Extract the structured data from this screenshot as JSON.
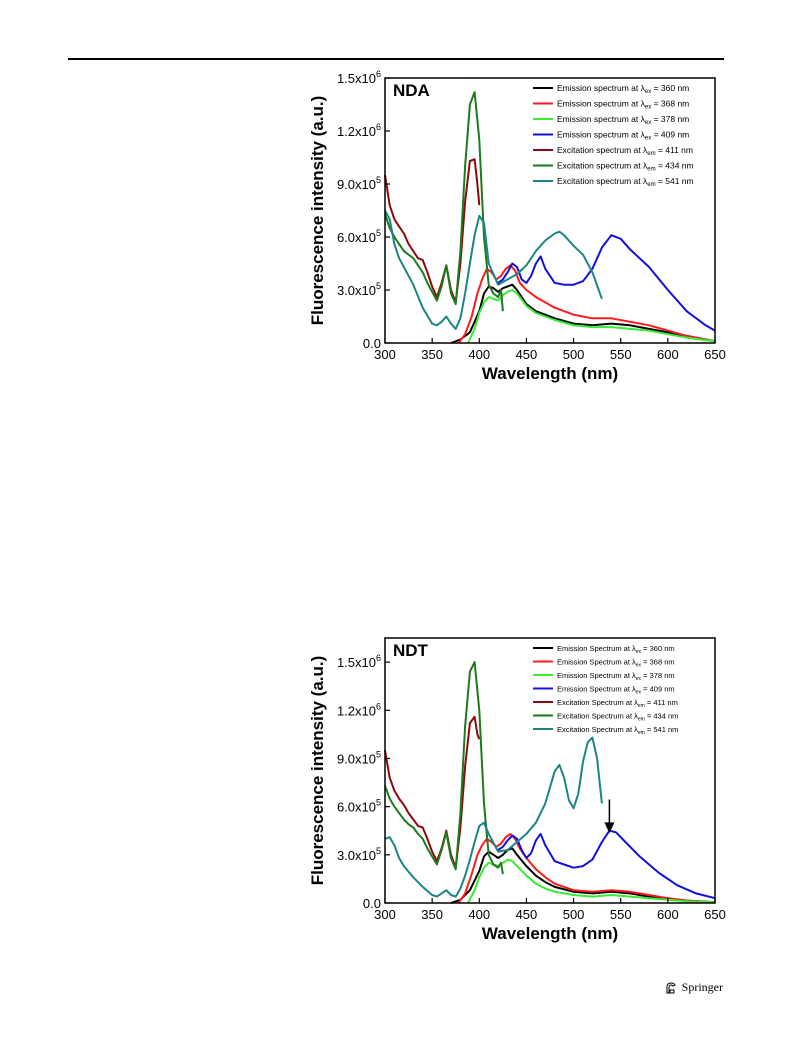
{
  "footer": {
    "publisher": "Springer",
    "icon": "springer-horse-icon"
  },
  "chart_data": [
    {
      "type": "line",
      "panel_label": "NDA",
      "xlabel": "Wavelength (nm)",
      "ylabel": "Fluorescence intensity (a.u.)",
      "xlim": [
        300,
        650
      ],
      "ylim": [
        0,
        1500000
      ],
      "xticks": [
        300,
        350,
        400,
        450,
        500,
        550,
        600,
        650
      ],
      "yticks": [
        0,
        300000,
        600000,
        900000,
        1200000,
        1500000
      ],
      "ytick_labels": [
        "0.0",
        "3.0x10^5",
        "6.0x10^5",
        "9.0x10^5",
        "1.2x10^6",
        "1.5x10^6"
      ],
      "legend_position": "top-right",
      "series": [
        {
          "name": "Emission spectrum at λex = 360 nm",
          "prefix": "Emission spectrum at λ",
          "sub": "ex",
          "suffix": " = 360 nm",
          "color": "#000000",
          "x": [
            370,
            380,
            390,
            400,
            405,
            410,
            415,
            420,
            425,
            430,
            435,
            440,
            450,
            460,
            470,
            480,
            500,
            520,
            540,
            560,
            580,
            600,
            620,
            650
          ],
          "y": [
            0,
            20000,
            60000,
            180000,
            280000,
            320000,
            310000,
            290000,
            310000,
            320000,
            330000,
            300000,
            220000,
            180000,
            160000,
            140000,
            110000,
            100000,
            110000,
            100000,
            80000,
            60000,
            40000,
            10000
          ]
        },
        {
          "name": "Emission spectrum at λex = 368 nm",
          "prefix": "Emission spectrum at λ",
          "sub": "ex",
          "suffix": " = 368 nm",
          "color": "#ff1a1a",
          "x": [
            378,
            385,
            392,
            398,
            403,
            408,
            413,
            418,
            423,
            428,
            433,
            438,
            443,
            450,
            460,
            470,
            480,
            500,
            520,
            540,
            560,
            580,
            600,
            620,
            650
          ],
          "y": [
            0,
            50000,
            150000,
            280000,
            360000,
            420000,
            400000,
            360000,
            380000,
            420000,
            440000,
            410000,
            340000,
            300000,
            260000,
            230000,
            200000,
            160000,
            140000,
            140000,
            120000,
            100000,
            70000,
            40000,
            10000
          ]
        },
        {
          "name": "Emission spectrum at λex = 378 nm",
          "prefix": "Emission spectrum at λ",
          "sub": "ex",
          "suffix": " = 378 nm",
          "color": "#33ee33",
          "x": [
            388,
            395,
            400,
            405,
            410,
            415,
            420,
            425,
            430,
            435,
            440,
            450,
            460,
            470,
            480,
            500,
            520,
            540,
            560,
            580,
            600,
            620,
            650
          ],
          "y": [
            0,
            80000,
            170000,
            230000,
            260000,
            250000,
            240000,
            270000,
            290000,
            300000,
            280000,
            210000,
            170000,
            150000,
            130000,
            100000,
            90000,
            90000,
            80000,
            70000,
            50000,
            30000,
            10000
          ]
        },
        {
          "name": "Emission spectrum at λex = 409 nm",
          "prefix": "Emission spectrum at λ",
          "sub": "ex",
          "suffix": " = 409 nm",
          "color": "#1010dd",
          "x": [
            420,
            425,
            430,
            435,
            440,
            445,
            450,
            455,
            460,
            465,
            470,
            480,
            490,
            500,
            510,
            520,
            530,
            540,
            550,
            560,
            580,
            600,
            620,
            640,
            650
          ],
          "y": [
            340000,
            360000,
            400000,
            450000,
            430000,
            360000,
            340000,
            380000,
            450000,
            490000,
            420000,
            340000,
            330000,
            330000,
            350000,
            420000,
            540000,
            610000,
            590000,
            530000,
            430000,
            300000,
            180000,
            100000,
            70000
          ]
        },
        {
          "name": "Excitation spectrum at λem = 411 nm",
          "prefix": "Excitation spectrum at λ",
          "sub": "em",
          "suffix": " = 411 nm",
          "color": "#8b0a0a",
          "x": [
            300,
            305,
            310,
            315,
            320,
            325,
            330,
            335,
            340,
            345,
            350,
            355,
            360,
            365,
            370,
            375,
            380,
            385,
            390,
            395,
            398,
            400
          ],
          "y": [
            950000,
            780000,
            700000,
            660000,
            620000,
            560000,
            520000,
            480000,
            470000,
            400000,
            320000,
            260000,
            340000,
            440000,
            300000,
            230000,
            450000,
            800000,
            1030000,
            1040000,
            900000,
            780000
          ]
        },
        {
          "name": "Excitation spectrum at λem = 434 nm",
          "prefix": "Excitation spectrum at λ",
          "sub": "em",
          "suffix": " = 434 nm",
          "color": "#1e7a1e",
          "x": [
            300,
            305,
            310,
            315,
            320,
            325,
            330,
            335,
            340,
            345,
            350,
            355,
            360,
            365,
            370,
            375,
            380,
            385,
            390,
            395,
            400,
            405,
            410,
            415,
            420,
            423,
            425
          ],
          "y": [
            730000,
            650000,
            600000,
            560000,
            520000,
            500000,
            480000,
            440000,
            400000,
            340000,
            290000,
            240000,
            320000,
            440000,
            280000,
            220000,
            520000,
            1000000,
            1350000,
            1420000,
            1150000,
            600000,
            330000,
            280000,
            260000,
            300000,
            180000
          ]
        },
        {
          "name": "Excitation spectrum at λem = 541 nm",
          "prefix": "Excitation spectrum at λ",
          "sub": "em",
          "suffix": " = 541 nm",
          "color": "#1b8585",
          "x": [
            300,
            305,
            310,
            315,
            320,
            330,
            340,
            350,
            355,
            360,
            365,
            370,
            375,
            380,
            385,
            390,
            395,
            400,
            405,
            410,
            420,
            430,
            440,
            450,
            460,
            470,
            480,
            485,
            490,
            500,
            510,
            520,
            530
          ],
          "y": [
            750000,
            700000,
            560000,
            480000,
            430000,
            330000,
            200000,
            110000,
            100000,
            120000,
            150000,
            110000,
            80000,
            140000,
            280000,
            450000,
            610000,
            720000,
            680000,
            450000,
            330000,
            360000,
            390000,
            440000,
            520000,
            580000,
            620000,
            630000,
            610000,
            550000,
            500000,
            400000,
            250000
          ]
        }
      ]
    },
    {
      "type": "line",
      "panel_label": "NDT",
      "xlabel": "Wavelength (nm)",
      "ylabel": "Fluorescence intensity (a.u.)",
      "xlim": [
        300,
        650
      ],
      "ylim": [
        0,
        1650000
      ],
      "xticks": [
        300,
        350,
        400,
        450,
        500,
        550,
        600,
        650
      ],
      "yticks": [
        0,
        300000,
        600000,
        900000,
        1200000,
        1500000
      ],
      "ytick_labels": [
        "0.0",
        "3.0x10^5",
        "6.0x10^5",
        "9.0x10^5",
        "1.2x10^6",
        "1.5x10^6"
      ],
      "legend_position": "top-right",
      "annotation": {
        "type": "arrow",
        "x": 538,
        "y_from": 520000,
        "y_to": 440000
      },
      "series": [
        {
          "name": "Emission Spectrum at λex = 360 nm",
          "prefix": "Emission Spectrum at λ",
          "sub": "ex",
          "suffix": " = 360 nm",
          "color": "#000000",
          "x": [
            370,
            380,
            390,
            400,
            405,
            410,
            415,
            420,
            425,
            430,
            435,
            440,
            450,
            460,
            470,
            480,
            500,
            520,
            540,
            560,
            580,
            600,
            620,
            650
          ],
          "y": [
            0,
            20000,
            80000,
            200000,
            290000,
            320000,
            300000,
            280000,
            300000,
            330000,
            340000,
            300000,
            230000,
            170000,
            130000,
            100000,
            70000,
            60000,
            70000,
            60000,
            40000,
            30000,
            15000,
            5000
          ]
        },
        {
          "name": "Emission Spectrum at λex = 368 nm",
          "prefix": "Emission Spectrum at λ",
          "sub": "ex",
          "suffix": " = 368 nm",
          "color": "#ff1a1a",
          "x": [
            378,
            385,
            392,
            398,
            403,
            408,
            413,
            418,
            423,
            428,
            433,
            438,
            443,
            450,
            460,
            470,
            480,
            500,
            520,
            540,
            560,
            580,
            600,
            620,
            650
          ],
          "y": [
            0,
            60000,
            180000,
            300000,
            360000,
            400000,
            380000,
            350000,
            370000,
            410000,
            430000,
            400000,
            340000,
            280000,
            210000,
            160000,
            120000,
            80000,
            70000,
            80000,
            70000,
            50000,
            30000,
            15000,
            5000
          ]
        },
        {
          "name": "Emission Spectrum at λex = 378 nm",
          "prefix": "Emission Spectrum at λ",
          "sub": "ex",
          "suffix": " = 378 nm",
          "color": "#33ee33",
          "x": [
            388,
            395,
            400,
            405,
            410,
            415,
            420,
            425,
            430,
            435,
            440,
            450,
            460,
            470,
            480,
            500,
            520,
            540,
            560,
            580,
            600,
            620,
            650
          ],
          "y": [
            0,
            80000,
            160000,
            220000,
            250000,
            240000,
            230000,
            250000,
            270000,
            260000,
            230000,
            170000,
            120000,
            90000,
            70000,
            50000,
            40000,
            50000,
            40000,
            30000,
            20000,
            10000,
            5000
          ]
        },
        {
          "name": "Emission Spectrum at λex = 409 nm",
          "prefix": "Emission Spectrum at λ",
          "sub": "ex",
          "suffix": " = 409 nm",
          "color": "#1010dd",
          "x": [
            420,
            425,
            430,
            435,
            440,
            445,
            450,
            455,
            460,
            465,
            470,
            480,
            490,
            500,
            510,
            520,
            530,
            538,
            545,
            555,
            570,
            590,
            610,
            630,
            650
          ],
          "y": [
            330000,
            350000,
            390000,
            420000,
            400000,
            330000,
            280000,
            310000,
            390000,
            430000,
            360000,
            260000,
            240000,
            220000,
            230000,
            270000,
            380000,
            450000,
            440000,
            380000,
            290000,
            190000,
            110000,
            60000,
            30000
          ]
        },
        {
          "name": "Excitation Spectrum at λem = 411 nm",
          "prefix": "Excitation Spectrum at λ",
          "sub": "em",
          "suffix": " = 411 nm",
          "color": "#8b0a0a",
          "x": [
            300,
            305,
            310,
            315,
            320,
            325,
            330,
            335,
            340,
            345,
            350,
            355,
            360,
            365,
            370,
            375,
            380,
            385,
            390,
            395,
            398,
            400
          ],
          "y": [
            950000,
            780000,
            700000,
            650000,
            610000,
            560000,
            520000,
            480000,
            470000,
            400000,
            320000,
            260000,
            340000,
            450000,
            300000,
            220000,
            470000,
            850000,
            1120000,
            1160000,
            1050000,
            1020000
          ]
        },
        {
          "name": "Excitation Spectrum at λem = 434 nm",
          "prefix": "Excitation Spectrum at λ",
          "sub": "em",
          "suffix": " = 434 nm",
          "color": "#1e7a1e",
          "x": [
            300,
            305,
            310,
            315,
            320,
            325,
            330,
            335,
            340,
            345,
            350,
            355,
            360,
            365,
            370,
            375,
            380,
            385,
            390,
            395,
            400,
            405,
            410,
            415,
            420,
            423,
            425
          ],
          "y": [
            730000,
            650000,
            600000,
            560000,
            520000,
            490000,
            470000,
            430000,
            400000,
            340000,
            290000,
            240000,
            330000,
            440000,
            280000,
            210000,
            560000,
            1100000,
            1440000,
            1500000,
            1200000,
            620000,
            300000,
            240000,
            220000,
            250000,
            180000
          ]
        },
        {
          "name": "Excitation Spectrum at λem = 541 nm",
          "prefix": "Excitation Spectrum at λ",
          "sub": "em",
          "suffix": " = 541 nm",
          "color": "#1b8585",
          "x": [
            300,
            305,
            310,
            315,
            320,
            330,
            340,
            350,
            355,
            360,
            365,
            370,
            375,
            380,
            385,
            390,
            395,
            400,
            405,
            410,
            420,
            430,
            440,
            450,
            460,
            470,
            480,
            485,
            490,
            495,
            500,
            505,
            510,
            515,
            520,
            525,
            530
          ],
          "y": [
            400000,
            410000,
            360000,
            280000,
            230000,
            160000,
            100000,
            50000,
            40000,
            60000,
            80000,
            50000,
            40000,
            90000,
            170000,
            270000,
            380000,
            480000,
            500000,
            430000,
            320000,
            330000,
            380000,
            430000,
            500000,
            620000,
            820000,
            860000,
            780000,
            640000,
            590000,
            680000,
            880000,
            1000000,
            1030000,
            900000,
            620000
          ]
        }
      ]
    }
  ]
}
